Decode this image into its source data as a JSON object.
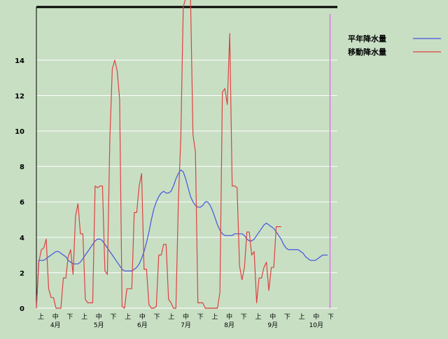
{
  "chart_data": {
    "type": "line",
    "title": "",
    "xlabel": "",
    "ylabel": "",
    "ylim": [
      0,
      17
    ],
    "y_ticks": [
      0,
      2,
      4,
      6,
      8,
      10,
      12,
      14
    ],
    "x_period_labels": [
      "上",
      "中",
      "下",
      "上",
      "中",
      "下",
      "上",
      "中",
      "下",
      "上",
      "中",
      "下",
      "上",
      "中",
      "下",
      "上",
      "中",
      "下",
      "上",
      "中",
      "下"
    ],
    "month_labels": [
      "4月",
      "5月",
      "6月",
      "7月",
      "8月",
      "9月",
      "10月"
    ],
    "current_marker_index": 120,
    "legend_position": "top-right",
    "grid": true,
    "series": [
      {
        "name": "平年降水量",
        "color": "#4455dd",
        "points": [
          [
            0,
            0
          ],
          [
            1,
            2.7
          ],
          [
            3,
            2.7
          ],
          [
            4,
            2.8
          ],
          [
            5,
            2.9
          ],
          [
            6,
            3.0
          ],
          [
            7,
            3.1
          ],
          [
            8,
            3.2
          ],
          [
            9,
            3.2
          ],
          [
            10,
            3.1
          ],
          [
            11,
            3.0
          ],
          [
            12,
            2.9
          ],
          [
            13,
            2.7
          ],
          [
            14,
            2.6
          ],
          [
            15,
            2.5
          ],
          [
            16,
            2.5
          ],
          [
            17,
            2.5
          ],
          [
            18,
            2.6
          ],
          [
            19,
            2.8
          ],
          [
            20,
            3.0
          ],
          [
            21,
            3.2
          ],
          [
            22,
            3.4
          ],
          [
            23,
            3.6
          ],
          [
            24,
            3.8
          ],
          [
            25,
            3.9
          ],
          [
            26,
            3.9
          ],
          [
            27,
            3.8
          ],
          [
            28,
            3.6
          ],
          [
            29,
            3.4
          ],
          [
            30,
            3.2
          ],
          [
            31,
            3.0
          ],
          [
            32,
            2.8
          ],
          [
            33,
            2.6
          ],
          [
            34,
            2.4
          ],
          [
            35,
            2.2
          ],
          [
            36,
            2.1
          ],
          [
            37,
            2.1
          ],
          [
            39,
            2.1
          ],
          [
            40,
            2.2
          ],
          [
            41,
            2.3
          ],
          [
            42,
            2.5
          ],
          [
            43,
            2.8
          ],
          [
            44,
            3.2
          ],
          [
            45,
            3.7
          ],
          [
            46,
            4.3
          ],
          [
            47,
            5.0
          ],
          [
            48,
            5.6
          ],
          [
            49,
            6.0
          ],
          [
            50,
            6.3
          ],
          [
            51,
            6.5
          ],
          [
            52,
            6.6
          ],
          [
            53,
            6.5
          ],
          [
            54,
            6.5
          ],
          [
            55,
            6.6
          ],
          [
            56,
            6.9
          ],
          [
            57,
            7.3
          ],
          [
            58,
            7.6
          ],
          [
            59,
            7.8
          ],
          [
            60,
            7.7
          ],
          [
            61,
            7.3
          ],
          [
            62,
            6.8
          ],
          [
            63,
            6.3
          ],
          [
            64,
            6.0
          ],
          [
            65,
            5.8
          ],
          [
            66,
            5.7
          ],
          [
            67,
            5.7
          ],
          [
            68,
            5.8
          ],
          [
            69,
            6.0
          ],
          [
            70,
            6.0
          ],
          [
            71,
            5.8
          ],
          [
            72,
            5.5
          ],
          [
            73,
            5.1
          ],
          [
            74,
            4.7
          ],
          [
            75,
            4.4
          ],
          [
            76,
            4.2
          ],
          [
            77,
            4.1
          ],
          [
            80,
            4.1
          ],
          [
            81,
            4.2
          ],
          [
            84,
            4.2
          ],
          [
            85,
            4.1
          ],
          [
            86,
            3.9
          ],
          [
            87,
            3.8
          ],
          [
            88,
            3.8
          ],
          [
            89,
            3.9
          ],
          [
            90,
            4.1
          ],
          [
            91,
            4.3
          ],
          [
            92,
            4.5
          ],
          [
            93,
            4.7
          ],
          [
            94,
            4.8
          ],
          [
            95,
            4.7
          ],
          [
            96,
            4.6
          ],
          [
            97,
            4.5
          ],
          [
            98,
            4.3
          ],
          [
            99,
            4.1
          ],
          [
            100,
            3.9
          ],
          [
            101,
            3.6
          ],
          [
            102,
            3.4
          ],
          [
            103,
            3.3
          ],
          [
            104,
            3.3
          ],
          [
            107,
            3.3
          ],
          [
            108,
            3.2
          ],
          [
            109,
            3.1
          ],
          [
            110,
            2.9
          ],
          [
            111,
            2.8
          ],
          [
            112,
            2.7
          ],
          [
            114,
            2.7
          ],
          [
            115,
            2.8
          ],
          [
            116,
            2.9
          ],
          [
            117,
            3.0
          ],
          [
            119,
            3.0
          ]
        ]
      },
      {
        "name": "移動降水量",
        "color": "#e04040",
        "points": [
          [
            0,
            0
          ],
          [
            1,
            2.6
          ],
          [
            2,
            3.3
          ],
          [
            3,
            3.4
          ],
          [
            4,
            3.9
          ],
          [
            5,
            1.1
          ],
          [
            6,
            0.6
          ],
          [
            7,
            0.6
          ],
          [
            8,
            0.0
          ],
          [
            10,
            0.0
          ],
          [
            11,
            1.7
          ],
          [
            12,
            1.7
          ],
          [
            13,
            2.9
          ],
          [
            14,
            3.3
          ],
          [
            15,
            1.9
          ],
          [
            16,
            5.2
          ],
          [
            17,
            5.9
          ],
          [
            18,
            4.2
          ],
          [
            19,
            4.2
          ],
          [
            20,
            0.5
          ],
          [
            21,
            0.3
          ],
          [
            22,
            0.3
          ],
          [
            23,
            0.3
          ],
          [
            24,
            6.9
          ],
          [
            25,
            6.8
          ],
          [
            26,
            6.9
          ],
          [
            27,
            6.9
          ],
          [
            28,
            2.1
          ],
          [
            29,
            1.9
          ],
          [
            30,
            9.5
          ],
          [
            31,
            13.5
          ],
          [
            32,
            14.0
          ],
          [
            33,
            13.4
          ],
          [
            34,
            11.8
          ],
          [
            35,
            0.1
          ],
          [
            36,
            0.0
          ],
          [
            37,
            1.1
          ],
          [
            38,
            1.1
          ],
          [
            39,
            1.1
          ],
          [
            40,
            5.4
          ],
          [
            41,
            5.4
          ],
          [
            42,
            6.9
          ],
          [
            43,
            7.6
          ],
          [
            44,
            2.2
          ],
          [
            45,
            2.2
          ],
          [
            46,
            0.2
          ],
          [
            47,
            0.0
          ],
          [
            48,
            0.0
          ],
          [
            49,
            0.1
          ],
          [
            50,
            3.0
          ],
          [
            51,
            3.0
          ],
          [
            52,
            3.6
          ],
          [
            53,
            3.6
          ],
          [
            54,
            0.5
          ],
          [
            55,
            0.3
          ],
          [
            56,
            0.0
          ],
          [
            57,
            0.0
          ],
          [
            58,
            6.0
          ],
          [
            59,
            9.6
          ],
          [
            60,
            17.0
          ],
          [
            61,
            17.5
          ],
          [
            63,
            17.5
          ],
          [
            64,
            9.8
          ],
          [
            65,
            8.8
          ],
          [
            66,
            0.3
          ],
          [
            67,
            0.3
          ],
          [
            68,
            0.3
          ],
          [
            69,
            0.0
          ],
          [
            74,
            0.0
          ],
          [
            75,
            0.9
          ],
          [
            76,
            12.2
          ],
          [
            77,
            12.4
          ],
          [
            78,
            11.5
          ],
          [
            79,
            15.5
          ],
          [
            80,
            6.9
          ],
          [
            81,
            6.9
          ],
          [
            82,
            6.8
          ],
          [
            83,
            2.4
          ],
          [
            84,
            1.6
          ],
          [
            85,
            2.3
          ],
          [
            86,
            4.3
          ],
          [
            87,
            4.3
          ],
          [
            88,
            3.0
          ],
          [
            89,
            3.2
          ],
          [
            90,
            0.3
          ],
          [
            91,
            1.7
          ],
          [
            92,
            1.7
          ],
          [
            93,
            2.3
          ],
          [
            94,
            2.6
          ],
          [
            95,
            1.0
          ],
          [
            96,
            2.3
          ],
          [
            97,
            2.3
          ],
          [
            98,
            4.6
          ],
          [
            99,
            4.6
          ],
          [
            100,
            4.6
          ]
        ]
      }
    ]
  }
}
